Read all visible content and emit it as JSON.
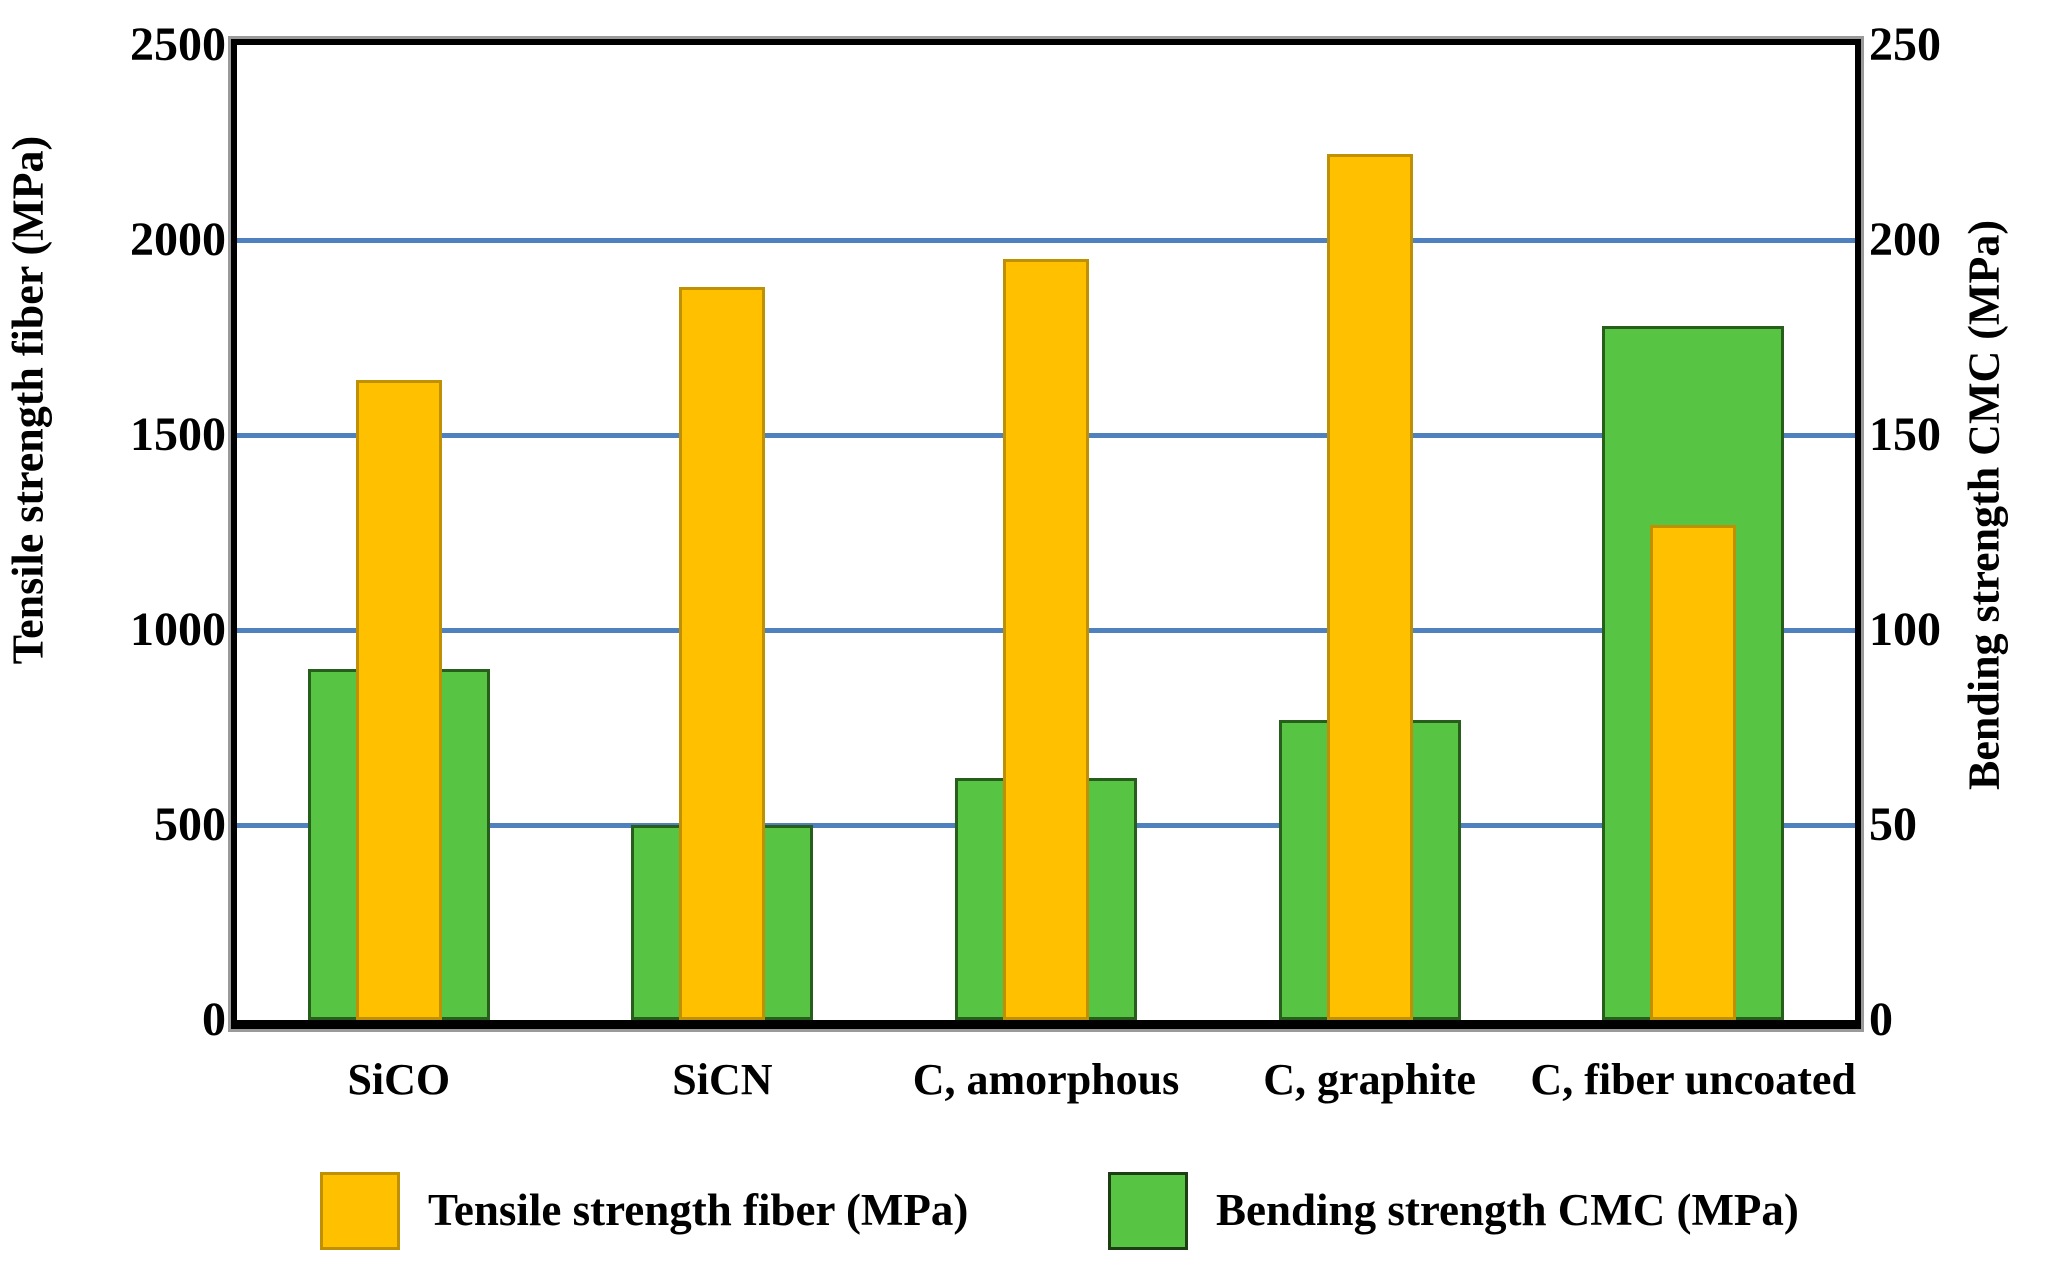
{
  "chart_data": {
    "type": "bar",
    "title": "",
    "categories": [
      "SiCO",
      "SiCN",
      "C, amorphous",
      "C, graphite",
      "C, fiber uncoated"
    ],
    "series": [
      {
        "name": "Tensile strength fiber (MPa)",
        "axis": "left",
        "color": "#FFC000",
        "border": "#BF9000",
        "values": [
          1640,
          1880,
          1950,
          2220,
          1270
        ]
      },
      {
        "name": "Bending strength CMC (MPa)",
        "axis": "right",
        "color": "#57C443",
        "border": "#275E1B",
        "values": [
          90,
          50,
          62,
          77,
          178
        ]
      }
    ],
    "left_axis": {
      "title": "Tensile strength fiber (MPa)",
      "min": 0,
      "max": 2500,
      "ticks": [
        0,
        500,
        1000,
        1500,
        2000,
        2500
      ]
    },
    "right_axis": {
      "title": "Bending strength CMC (MPa)",
      "min": 0,
      "max": 250,
      "ticks": [
        0,
        50,
        100,
        150,
        200,
        250
      ]
    },
    "gridlines": {
      "left_values": [
        500,
        1000,
        1500,
        2000
      ],
      "color": "#4E81BD"
    },
    "legend": {
      "position": "bottom",
      "items": [
        {
          "label": "Tensile strength fiber (MPa)",
          "color": "#FFC000",
          "border": "#BF9000"
        },
        {
          "label": "Bending strength CMC (MPa)",
          "color": "#57C443",
          "border": "#1C3E12"
        }
      ]
    }
  }
}
